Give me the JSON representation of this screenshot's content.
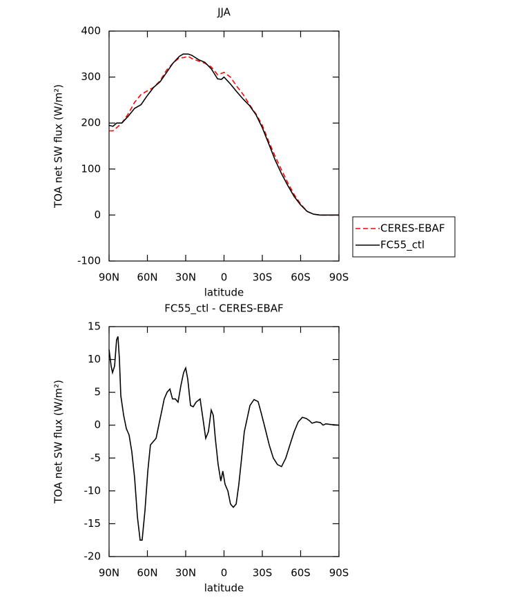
{
  "chart_data": [
    {
      "type": "line",
      "title": "JJA",
      "xlabel": "latitude",
      "ylabel": "TOA net SW flux (W/m²)",
      "x": [
        90,
        87,
        84,
        80,
        75,
        70,
        65,
        60,
        55,
        50,
        45,
        40,
        35,
        32,
        28,
        25,
        20,
        15,
        10,
        5,
        2,
        0,
        -5,
        -10,
        -15,
        -20,
        -25,
        -30,
        -35,
        -40,
        -45,
        -50,
        -55,
        -60,
        -65,
        -70,
        -75,
        -80,
        -85,
        -90
      ],
      "series": [
        {
          "name": "CERES-EBAF",
          "color": "#ff0000",
          "dashed": true,
          "values": [
            183,
            183,
            190,
            200,
            220,
            245,
            262,
            270,
            278,
            292,
            315,
            330,
            342,
            342,
            345,
            340,
            335,
            330,
            322,
            305,
            308,
            310,
            300,
            280,
            262,
            240,
            220,
            195,
            160,
            128,
            98,
            70,
            44,
            24,
            8,
            2,
            0,
            0,
            0,
            0
          ]
        },
        {
          "name": "FC55_ctl",
          "color": "#000000",
          "dashed": false,
          "values": [
            195,
            193,
            200,
            200,
            215,
            232,
            240,
            260,
            278,
            290,
            310,
            330,
            345,
            350,
            350,
            347,
            338,
            332,
            318,
            296,
            295,
            300,
            285,
            268,
            252,
            238,
            218,
            190,
            155,
            120,
            90,
            64,
            40,
            22,
            8,
            2,
            0,
            0,
            0,
            0
          ]
        }
      ],
      "xlim": [
        90,
        -90
      ],
      "xticks": [
        {
          "value": 90,
          "label": "90N"
        },
        {
          "value": 60,
          "label": "60N"
        },
        {
          "value": 30,
          "label": "30N"
        },
        0,
        {
          "value": -30,
          "label": "30S"
        },
        {
          "value": -60,
          "label": "60S"
        },
        {
          "value": -90,
          "label": "90S"
        }
      ],
      "ylim": [
        -100,
        400
      ],
      "yticks": [
        -100,
        0,
        100,
        200,
        300,
        400
      ],
      "legend": "outside right"
    },
    {
      "type": "line",
      "title": "FC55_ctl - CERES-EBAF",
      "xlabel": "latitude",
      "ylabel": "TOA net SW flux (W/m²)",
      "x": [
        90,
        88.4,
        87.3,
        85.7,
        84.1,
        83.0,
        81.9,
        80.8,
        78.6,
        76.5,
        74.3,
        72.2,
        70.0,
        67.8,
        65.7,
        64.1,
        61.9,
        59.7,
        57.6,
        55.4,
        53.2,
        51.1,
        48.9,
        46.8,
        44.6,
        42.4,
        40.3,
        38.1,
        36.0,
        33.8,
        31.6,
        30.0,
        28.4,
        26.2,
        24.1,
        21.9,
        18.7,
        16.5,
        14.3,
        12.2,
        10.0,
        8.4,
        6.8,
        4.6,
        2.5,
        0.9,
        -0.8,
        -3.0,
        -5.1,
        -7.3,
        -9.5,
        -11.6,
        -13.8,
        -15.9,
        -18.1,
        -20.3,
        -23.5,
        -26.7,
        -28.9,
        -32.2,
        -35.4,
        -38.6,
        -41.9,
        -45.1,
        -48.4,
        -51.6,
        -54.9,
        -58.1,
        -61.4,
        -64.6,
        -66.8,
        -68.9,
        -72.2,
        -75.4,
        -77.6,
        -79.7,
        -84.0,
        -90
      ],
      "values": [
        11.5,
        9,
        8,
        9,
        13,
        13.5,
        10,
        4.5,
        1.5,
        -0.5,
        -1.5,
        -4,
        -8,
        -14,
        -17.5,
        -17.5,
        -13,
        -7,
        -3,
        -2.5,
        -2,
        0,
        2,
        4,
        5,
        5.5,
        4,
        4,
        3.5,
        6,
        8,
        8.7,
        7,
        3,
        2.8,
        3.5,
        4,
        1,
        -2,
        -1,
        2.3,
        1.5,
        -2,
        -6,
        -8.5,
        -7,
        -9,
        -10,
        -12,
        -12.5,
        -12,
        -9,
        -5,
        -1,
        1,
        3,
        3.9,
        3.6,
        2,
        -0.5,
        -3,
        -5,
        -6,
        -6.3,
        -5,
        -3,
        -1,
        0.5,
        1.2,
        1,
        0.7,
        0.3,
        0.5,
        0.4,
        0,
        0.2,
        0.1,
        0
      ],
      "color": "#000000",
      "xlim": [
        90,
        -90
      ],
      "xticks": [
        {
          "value": 90,
          "label": "90N"
        },
        {
          "value": 60,
          "label": "60N"
        },
        {
          "value": 30,
          "label": "30N"
        },
        0,
        {
          "value": -30,
          "label": "30S"
        },
        {
          "value": -60,
          "label": "60S"
        },
        {
          "value": -90,
          "label": "90S"
        }
      ],
      "ylim": [
        -20,
        15
      ],
      "yticks": [
        -20,
        -15,
        -10,
        -5,
        0,
        5,
        10,
        15
      ]
    }
  ]
}
